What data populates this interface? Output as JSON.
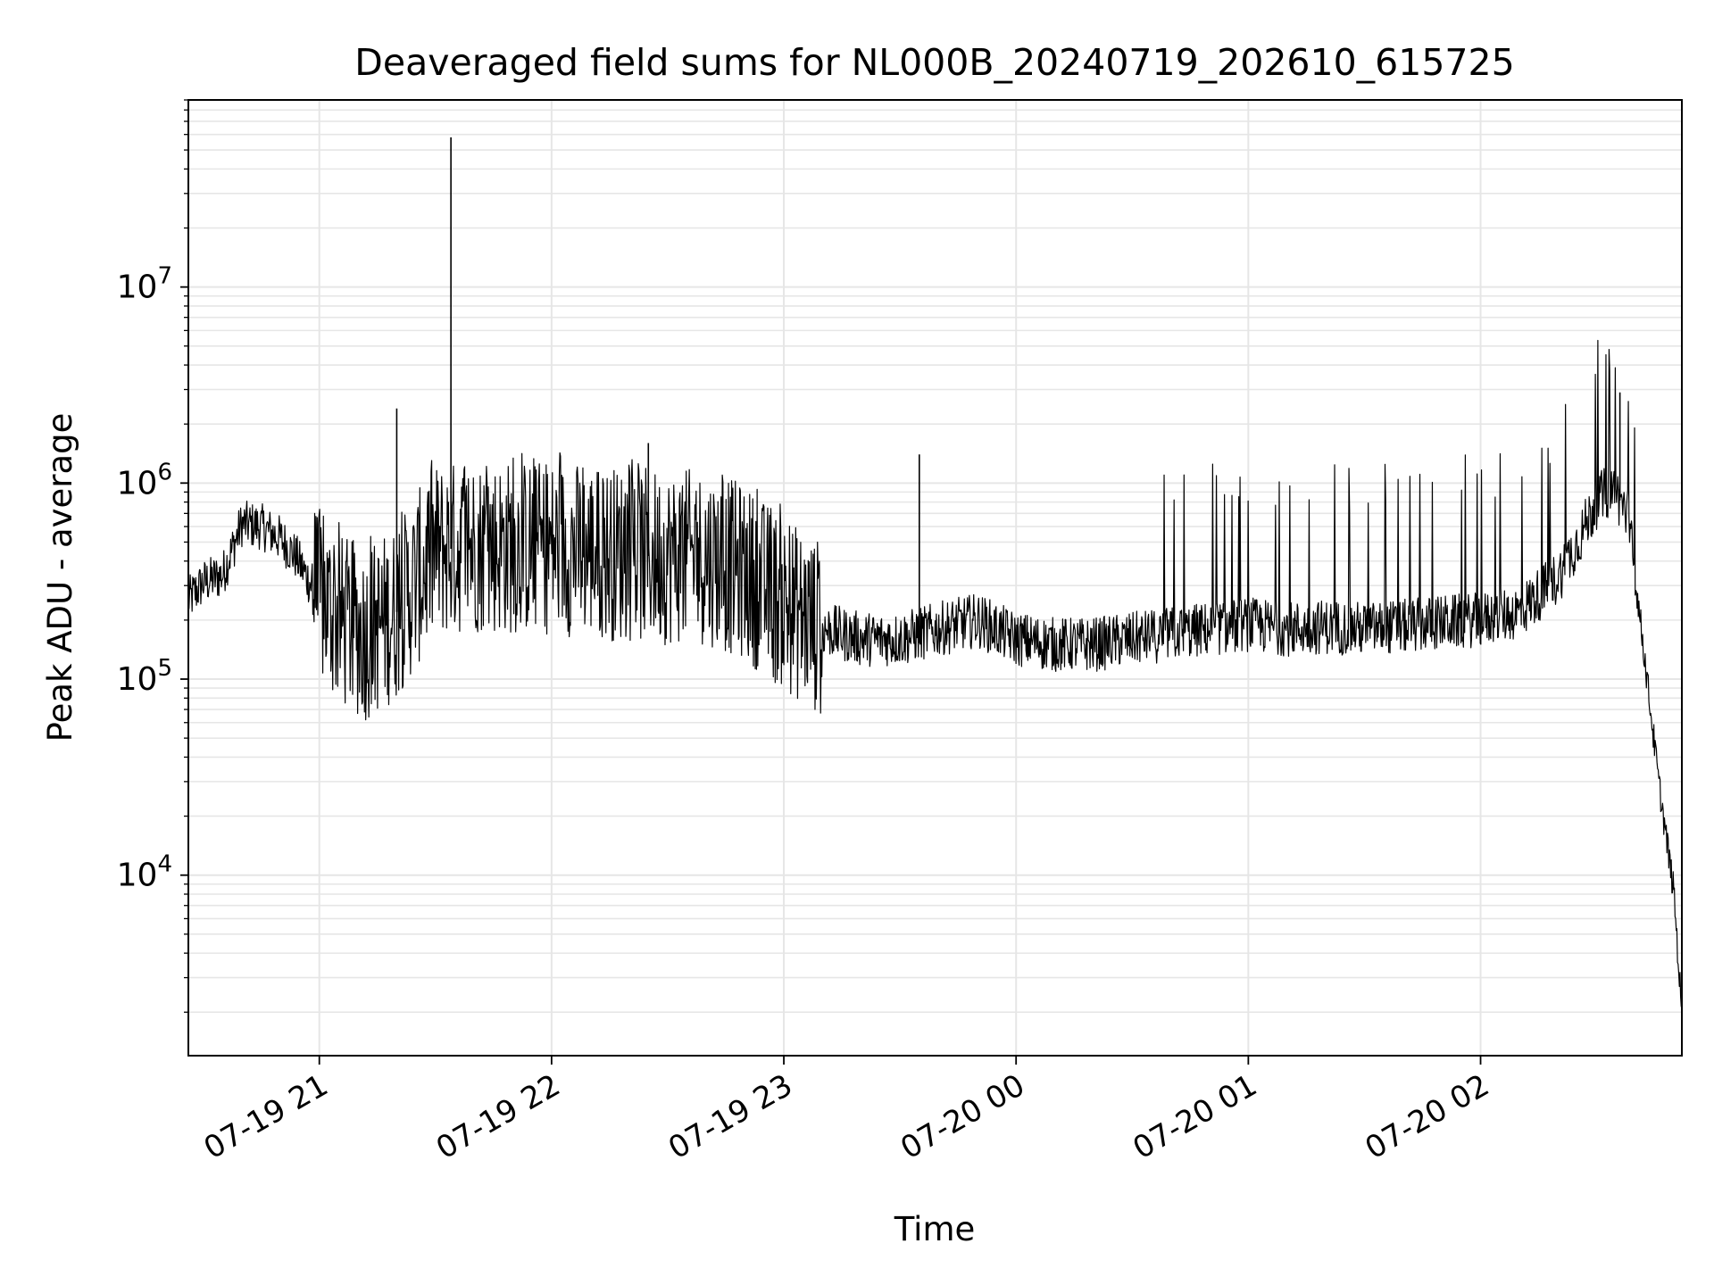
{
  "chart_data": {
    "type": "line",
    "title": "Deaveraged field sums for NL000B_20240719_202610_615725",
    "xlabel": "Time",
    "ylabel": "Peak ADU - average",
    "yscale": "log",
    "ylim": [
      1200,
      90000000
    ],
    "xlim": [
      "2024-07-19 20:26:10",
      "2024-07-20 02:52:00"
    ],
    "grid": true,
    "x_ticks": [
      {
        "value": "2024-07-19 21:00",
        "label": "07-19 21"
      },
      {
        "value": "2024-07-19 22:00",
        "label": "07-19 22"
      },
      {
        "value": "2024-07-19 23:00",
        "label": "07-19 23"
      },
      {
        "value": "2024-07-20 00:00",
        "label": "07-20 00"
      },
      {
        "value": "2024-07-20 01:00",
        "label": "07-20 01"
      },
      {
        "value": "2024-07-20 02:00",
        "label": "07-20 02"
      }
    ],
    "y_ticks": [
      {
        "value": 10000,
        "base": "10",
        "exp": "4"
      },
      {
        "value": 100000,
        "base": "10",
        "exp": "5"
      },
      {
        "value": 1000000,
        "base": "10",
        "exp": "6"
      },
      {
        "value": 10000000,
        "base": "10",
        "exp": "7"
      }
    ],
    "line_color": "#000000",
    "grid_color": "#e6e6e6",
    "series": [
      {
        "x": [
          "2024-07-19 20:26",
          "2024-07-19 20:30",
          "2024-07-19 20:35",
          "2024-07-19 20:40",
          "2024-07-19 20:45",
          "2024-07-19 20:50",
          "2024-07-19 20:54",
          "2024-07-19 20:58",
          "2024-07-19 21:05",
          "2024-07-19 21:12",
          "2024-07-19 21:20",
          "2024-07-19 21:30",
          "2024-07-19 21:40",
          "2024-07-19 21:50",
          "2024-07-19 22:00",
          "2024-07-19 22:10",
          "2024-07-19 22:20",
          "2024-07-19 22:30",
          "2024-07-19 22:40",
          "2024-07-19 22:50",
          "2024-07-19 23:00",
          "2024-07-19 23:10",
          "2024-07-19 23:20",
          "2024-07-19 23:30",
          "2024-07-19 23:40",
          "2024-07-19 23:50",
          "2024-07-20 00:00",
          "2024-07-20 00:10",
          "2024-07-20 00:20",
          "2024-07-20 00:30",
          "2024-07-20 00:40",
          "2024-07-20 00:50",
          "2024-07-20 01:00",
          "2024-07-20 01:10",
          "2024-07-20 01:20",
          "2024-07-20 01:30",
          "2024-07-20 01:40",
          "2024-07-20 01:50",
          "2024-07-20 02:00",
          "2024-07-20 02:10",
          "2024-07-20 02:20",
          "2024-07-20 02:25",
          "2024-07-20 02:30",
          "2024-07-20 02:34",
          "2024-07-20 02:38",
          "2024-07-20 02:42",
          "2024-07-20 02:46",
          "2024-07-20 02:50",
          "2024-07-20 02:52"
        ],
        "y": [
          250000,
          310000,
          340000,
          620000,
          600000,
          520000,
          420000,
          300000,
          200000,
          170000,
          220000,
          450000,
          480000,
          470000,
          470000,
          450000,
          430000,
          420000,
          420000,
          350000,
          240000,
          180000,
          160000,
          160000,
          180000,
          200000,
          160000,
          150000,
          150000,
          160000,
          170000,
          180000,
          190000,
          180000,
          185000,
          180000,
          185000,
          195000,
          200000,
          220000,
          330000,
          500000,
          800000,
          950000,
          700000,
          150000,
          30000,
          8000,
          1900
        ]
      }
    ],
    "spikes": [
      {
        "x": "2024-07-19 21:34",
        "y": 58000000
      },
      {
        "x": "2024-07-19 21:20",
        "y": 2400000
      },
      {
        "x": "2024-07-19 22:25",
        "y": 1600000
      },
      {
        "x": "2024-07-19 23:35",
        "y": 1400000
      },
      {
        "x": "2024-07-20 02:36",
        "y": 2900000
      }
    ]
  }
}
